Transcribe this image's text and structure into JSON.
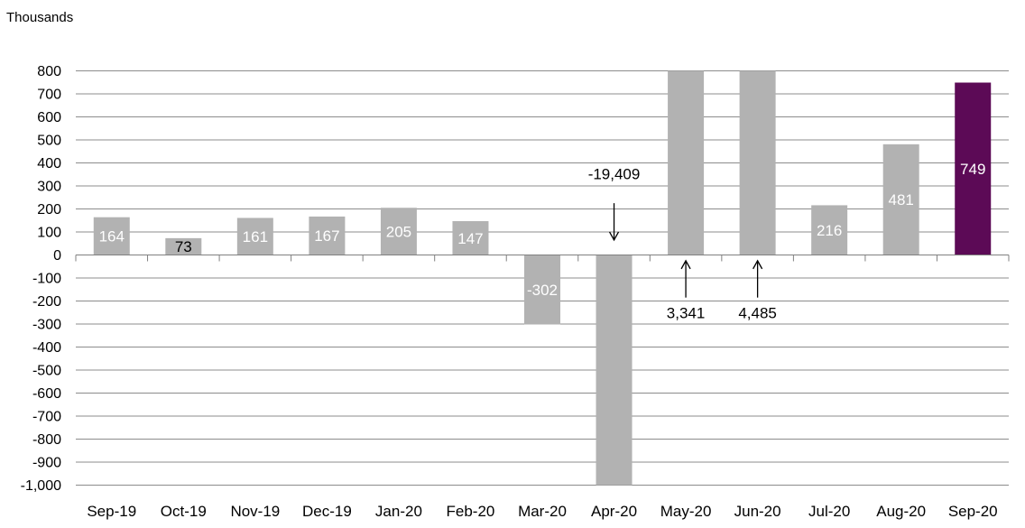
{
  "chart_data": {
    "type": "bar",
    "unit_label": "Thousands",
    "categories": [
      "Sep-19",
      "Oct-19",
      "Nov-19",
      "Dec-19",
      "Jan-20",
      "Feb-20",
      "Mar-20",
      "Apr-20",
      "May-20",
      "Jun-20",
      "Jul-20",
      "Aug-20",
      "Sep-20"
    ],
    "values": [
      164,
      73,
      161,
      167,
      205,
      147,
      -302,
      -19409,
      3341,
      4485,
      216,
      481,
      749
    ],
    "data_labels": [
      "164",
      "73",
      "161",
      "167",
      "205",
      "147",
      "-302",
      "-19,409",
      "3,341",
      "4,485",
      "216",
      "481",
      "749"
    ],
    "ylim": [
      -1000,
      800
    ],
    "yticks": [
      800,
      700,
      600,
      500,
      400,
      300,
      200,
      100,
      0,
      -100,
      -200,
      -300,
      -400,
      -500,
      -600,
      -700,
      -800,
      -900,
      -1000
    ],
    "ytick_labels": [
      "800",
      "700",
      "600",
      "500",
      "400",
      "300",
      "200",
      "100",
      "0",
      "-100",
      "-200",
      "-300",
      "-400",
      "-500",
      "-600",
      "-700",
      "-800",
      "-900",
      "-1,000"
    ],
    "grid": true,
    "legend": false,
    "colors": {
      "bar": "#b2b2b2",
      "highlight": "#5c0a56",
      "grid": "#8c8c8c",
      "label_on_bar": "#ffffff",
      "label_dark": "#000000"
    },
    "highlight_index": 12,
    "dark_label_indices": [
      1
    ],
    "off_scale": [
      {
        "index": 7,
        "label": "-19,409",
        "direction": "down"
      },
      {
        "index": 8,
        "label": "3,341",
        "direction": "up"
      },
      {
        "index": 9,
        "label": "4,485",
        "direction": "up"
      }
    ]
  }
}
